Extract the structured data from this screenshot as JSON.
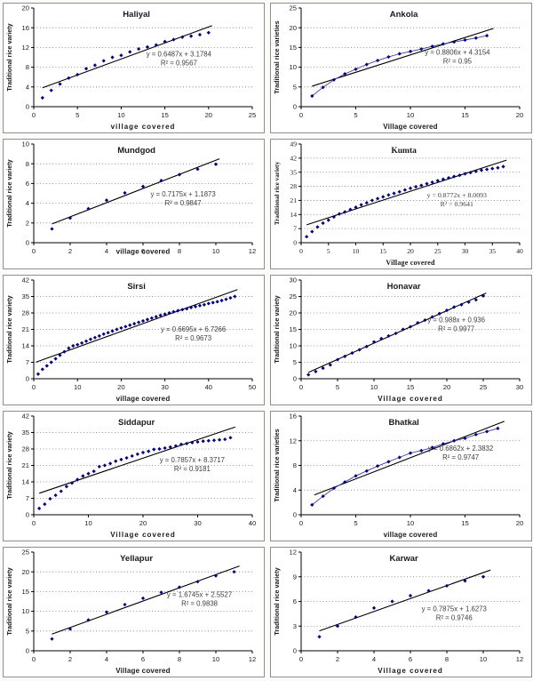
{
  "style": {
    "marker_color": "#000080",
    "series_line_color": "#3f3f9f",
    "trend_color": "#000000",
    "grid_color": "#7a7a7a",
    "axis_color": "#000000",
    "text_color": "#1a1a1a",
    "equation_color": "#3d3d3d",
    "panel_border_color": "#8f8f8f",
    "background": "#ffffff"
  },
  "chart_data": [
    {
      "type": "scatter",
      "title": "Haliyal",
      "ylabel": "Traditional rice variety",
      "xlabel": "village covered",
      "xlim": [
        0,
        25
      ],
      "xstep": 5,
      "ylim": [
        0,
        20
      ],
      "ystep": 4,
      "x": [
        1,
        2,
        3,
        4,
        5,
        6,
        7,
        8,
        9,
        10,
        11,
        12,
        13,
        14,
        15,
        16,
        17,
        18,
        19,
        20
      ],
      "y": [
        1.8,
        3.3,
        4.6,
        5.8,
        6.5,
        7.7,
        8.4,
        9.3,
        10,
        10.4,
        11.1,
        11.7,
        12.1,
        12.5,
        13.2,
        13.6,
        14.1,
        14.3,
        14.6,
        15
      ],
      "connected": false,
      "serif": false,
      "xlabel_inline": false,
      "spaced": true,
      "trend": {
        "slope": 0.6487,
        "intercept": 3.1784,
        "x1": 1,
        "x2": 20.4
      },
      "equation": "y = 0.6487x + 3.1784",
      "r2": "R² = 0.9567",
      "eq_pos": [
        16.6,
        10.2
      ]
    },
    {
      "type": "scatter",
      "title": "Ankola",
      "ylabel": "Traditional rice varieties",
      "xlabel": "Village covered",
      "xlim": [
        0,
        20
      ],
      "xstep": 5,
      "ylim": [
        0,
        25
      ],
      "ystep": 5,
      "x": [
        1,
        2,
        3,
        4,
        5,
        6,
        7,
        8,
        9,
        10,
        11,
        12,
        13,
        14,
        15,
        16,
        17
      ],
      "y": [
        2.7,
        4.9,
        6.8,
        8.3,
        9.5,
        10.7,
        11.7,
        12.6,
        13.4,
        14,
        14.6,
        15.3,
        15.9,
        16.4,
        16.9,
        17.4,
        18
      ],
      "connected": true,
      "serif": false,
      "xlabel_inline": false,
      "spaced": false,
      "trend": {
        "slope": 0.8806,
        "intercept": 4.3154,
        "x1": 1,
        "x2": 17.6
      },
      "equation": "y = 0.8806x + 4.3154",
      "r2": "R² = 0.95",
      "eq_pos": [
        14.3,
        13.2
      ]
    },
    {
      "type": "scatter",
      "title": "Mundgod",
      "ylabel": "Traditional rice variety",
      "xlabel": "village covered",
      "xlim": [
        0,
        12
      ],
      "xstep": 2,
      "ylim": [
        0,
        10
      ],
      "ystep": 2,
      "x": [
        1,
        2,
        3,
        4,
        5,
        6,
        7,
        8,
        9,
        10
      ],
      "y": [
        1.4,
        2.5,
        3.45,
        4.3,
        5.05,
        5.7,
        6.3,
        6.9,
        7.45,
        7.95
      ],
      "connected": false,
      "serif": false,
      "xlabel_inline": true,
      "spaced": false,
      "trend": {
        "slope": 0.7175,
        "intercept": 1.1873,
        "x1": 1,
        "x2": 10.2
      },
      "equation": "y = 0.7175x + 1.1873",
      "r2": "R² = 0.9847",
      "eq_pos": [
        8.2,
        4.7
      ]
    },
    {
      "type": "scatter",
      "title": "Kumta",
      "ylabel": "Traditional rice variety",
      "xlabel": "Village covered",
      "xlim": [
        0,
        40
      ],
      "xstep": 5,
      "ylim": [
        0,
        49
      ],
      "ystep": 7,
      "x": [
        1,
        2,
        3,
        4,
        5,
        6,
        7,
        8,
        9,
        10,
        11,
        12,
        13,
        14,
        15,
        16,
        17,
        18,
        19,
        20,
        21,
        22,
        23,
        24,
        25,
        26,
        27,
        28,
        29,
        30,
        31,
        32,
        33,
        34,
        35,
        36,
        37
      ],
      "y": [
        3,
        5.5,
        7.8,
        9.7,
        11.2,
        12.8,
        14.3,
        15.3,
        16.5,
        17.6,
        18.8,
        19.8,
        21,
        21.9,
        22.8,
        23.7,
        24.5,
        25.3,
        26.2,
        27,
        27.8,
        28.5,
        29.3,
        30,
        30.8,
        31.5,
        32.2,
        32.9,
        33.5,
        34.2,
        34.8,
        35.4,
        36,
        36.4,
        36.8,
        37.2,
        37.8
      ],
      "connected": false,
      "serif": true,
      "xlabel_inline": false,
      "spaced": false,
      "trend": {
        "slope": 0.8772,
        "intercept": 8.0093,
        "x1": 1,
        "x2": 37.6
      },
      "equation": "y = 0.8772x + 8.0093",
      "r2": "R² = 0.9641",
      "eq_pos": [
        28.5,
        22.5
      ]
    },
    {
      "type": "scatter",
      "title": "Sirsi",
      "ylabel": "Traditional rice variety",
      "xlabel": "village covered",
      "xlim": [
        0,
        50
      ],
      "xstep": 10,
      "ylim": [
        0,
        42
      ],
      "ystep": 7,
      "x": [
        1,
        2,
        3,
        4,
        5,
        6,
        7,
        8,
        9,
        10,
        11,
        12,
        13,
        14,
        15,
        16,
        17,
        18,
        19,
        20,
        21,
        22,
        23,
        24,
        25,
        26,
        27,
        28,
        29,
        30,
        31,
        32,
        33,
        34,
        35,
        36,
        37,
        38,
        39,
        40,
        41,
        42,
        43,
        44,
        45,
        46
      ],
      "y": [
        2,
        4,
        5.5,
        7,
        8.5,
        10,
        11.5,
        13,
        14,
        14.5,
        15.2,
        16,
        16.8,
        17.5,
        18.2,
        19,
        19.6,
        20.3,
        21,
        21.6,
        22.2,
        22.8,
        23.4,
        24,
        24.6,
        25.2,
        25.8,
        26.4,
        27,
        27.5,
        28,
        28.5,
        29,
        29.4,
        29.8,
        30.3,
        30.7,
        31.1,
        31.5,
        32,
        32.4,
        32.8,
        33.3,
        33.8,
        34.4,
        35
      ],
      "connected": false,
      "serif": false,
      "xlabel_inline": false,
      "spaced": false,
      "trend": {
        "slope": 0.6695,
        "intercept": 6.7266,
        "x1": 0.5,
        "x2": 46.6
      },
      "equation": "y = 0.6695x + 6.7266",
      "r2": "R² = 0.9673",
      "eq_pos": [
        36.5,
        20
      ]
    },
    {
      "type": "scatter",
      "title": "Honavar",
      "ylabel": "Traditional rice variety",
      "xlabel": "Village covered",
      "xlim": [
        0,
        30
      ],
      "xstep": 5,
      "ylim": [
        0,
        30
      ],
      "ystep": 5,
      "x": [
        1,
        2,
        3,
        4,
        5,
        6,
        7,
        8,
        9,
        10,
        11,
        12,
        13,
        14,
        15,
        16,
        17,
        18,
        19,
        20,
        21,
        22,
        23,
        24,
        25
      ],
      "y": [
        1.2,
        2.2,
        3.2,
        4.2,
        5.8,
        6.8,
        7.8,
        8.8,
        9.8,
        11.2,
        12.2,
        13,
        13.8,
        15,
        15.8,
        17,
        17.8,
        18.8,
        19.8,
        20.8,
        21.8,
        22.5,
        23.3,
        24,
        25.2
      ],
      "connected": false,
      "serif": false,
      "xlabel_inline": false,
      "spaced": true,
      "trend": {
        "slope": 0.988,
        "intercept": 0.936,
        "x1": 1,
        "x2": 25.4
      },
      "equation": "y = 0.988x + 0.936",
      "r2": "R² = 0.9977",
      "eq_pos": [
        21.3,
        17.2
      ]
    },
    {
      "type": "scatter",
      "title": "Siddapur",
      "ylabel": "Traditional rice variety",
      "xlabel": "Village covered",
      "xlim": [
        0,
        40
      ],
      "xstep": 10,
      "ylim": [
        0,
        42
      ],
      "ystep": 7,
      "x": [
        1,
        2,
        3,
        4,
        5,
        6,
        7,
        8,
        9,
        10,
        11,
        12,
        13,
        14,
        15,
        16,
        17,
        18,
        19,
        20,
        21,
        22,
        23,
        24,
        25,
        26,
        27,
        28,
        29,
        30,
        31,
        32,
        33,
        34,
        35,
        36
      ],
      "y": [
        2.7,
        4.5,
        6.8,
        8.3,
        10,
        12,
        13.5,
        15,
        16.5,
        17.5,
        18.5,
        20.5,
        21,
        21.8,
        22.8,
        23.5,
        24.2,
        25,
        25.8,
        26.5,
        27,
        27.8,
        28,
        28.4,
        28.8,
        29.3,
        30,
        30.3,
        30.7,
        31,
        31.3,
        31.5,
        31.7,
        31.9,
        32.1,
        32.8
      ],
      "connected": false,
      "serif": false,
      "xlabel_inline": false,
      "spaced": true,
      "trend": {
        "slope": 0.7857,
        "intercept": 8.3717,
        "x1": 1,
        "x2": 36.9
      },
      "equation": "y = 0.7857x + 8.3717",
      "r2": "R² = 0.9181",
      "eq_pos": [
        29,
        22.3
      ]
    },
    {
      "type": "scatter",
      "title": "Bhatkal",
      "ylabel": "Traditional rice varieties",
      "xlabel": "village covered",
      "xlim": [
        0,
        20
      ],
      "xstep": 5,
      "ylim": [
        0,
        16
      ],
      "ystep": 4,
      "x": [
        1,
        2,
        3,
        4,
        5,
        6,
        7,
        8,
        9,
        10,
        11,
        12,
        13,
        14,
        15,
        16,
        17,
        18
      ],
      "y": [
        1.6,
        3,
        4.3,
        5.3,
        6.3,
        7.1,
        7.9,
        8.6,
        9.3,
        10,
        10.4,
        10.9,
        11.5,
        12,
        12.4,
        13,
        13.5,
        14
      ],
      "connected": true,
      "serif": false,
      "xlabel_inline": false,
      "spaced": false,
      "trend": {
        "slope": 0.6862,
        "intercept": 2.3832,
        "x1": 1.2,
        "x2": 18.6
      },
      "equation": "y = 0.6862x + 2.3832",
      "r2": "R² = 0.9747",
      "eq_pos": [
        14.6,
        10.4
      ]
    },
    {
      "type": "scatter",
      "title": "Yellapur",
      "ylabel": "Traditional rice variety",
      "xlabel": "Village covered",
      "xlim": [
        0,
        12
      ],
      "xstep": 2,
      "ylim": [
        0,
        25
      ],
      "ystep": 5,
      "x": [
        1,
        2,
        3,
        4,
        5,
        6,
        7,
        8,
        9,
        10,
        11
      ],
      "y": [
        3,
        5.5,
        7.8,
        9.8,
        11.7,
        13.3,
        14.8,
        16.1,
        17.5,
        19,
        20
      ],
      "connected": false,
      "serif": false,
      "xlabel_inline": false,
      "spaced": false,
      "trend": {
        "slope": 1.6745,
        "intercept": 2.5527,
        "x1": 1,
        "x2": 11.3
      },
      "equation": "y = 1.6745x + 2.5527",
      "r2": "R² = 0.9838",
      "eq_pos": [
        9.1,
        13.6
      ]
    },
    {
      "type": "scatter",
      "title": "Karwar",
      "ylabel": "Traditional rice variety",
      "xlabel": "Village covered",
      "xlim": [
        0,
        12
      ],
      "xstep": 2,
      "ylim": [
        0,
        12
      ],
      "ystep": 3,
      "x": [
        1,
        2,
        3,
        4,
        5,
        6,
        7,
        8,
        9,
        10
      ],
      "y": [
        1.7,
        3,
        4.1,
        5.2,
        6,
        6.7,
        7.3,
        7.9,
        8.5,
        9
      ],
      "connected": false,
      "serif": false,
      "xlabel_inline": false,
      "spaced": true,
      "trend": {
        "slope": 0.7875,
        "intercept": 1.6273,
        "x1": 1,
        "x2": 10.4
      },
      "equation": "y = 0.7875x + 1.6273",
      "r2": "R² = 0.9746",
      "eq_pos": [
        8.4,
        4.8
      ]
    }
  ]
}
